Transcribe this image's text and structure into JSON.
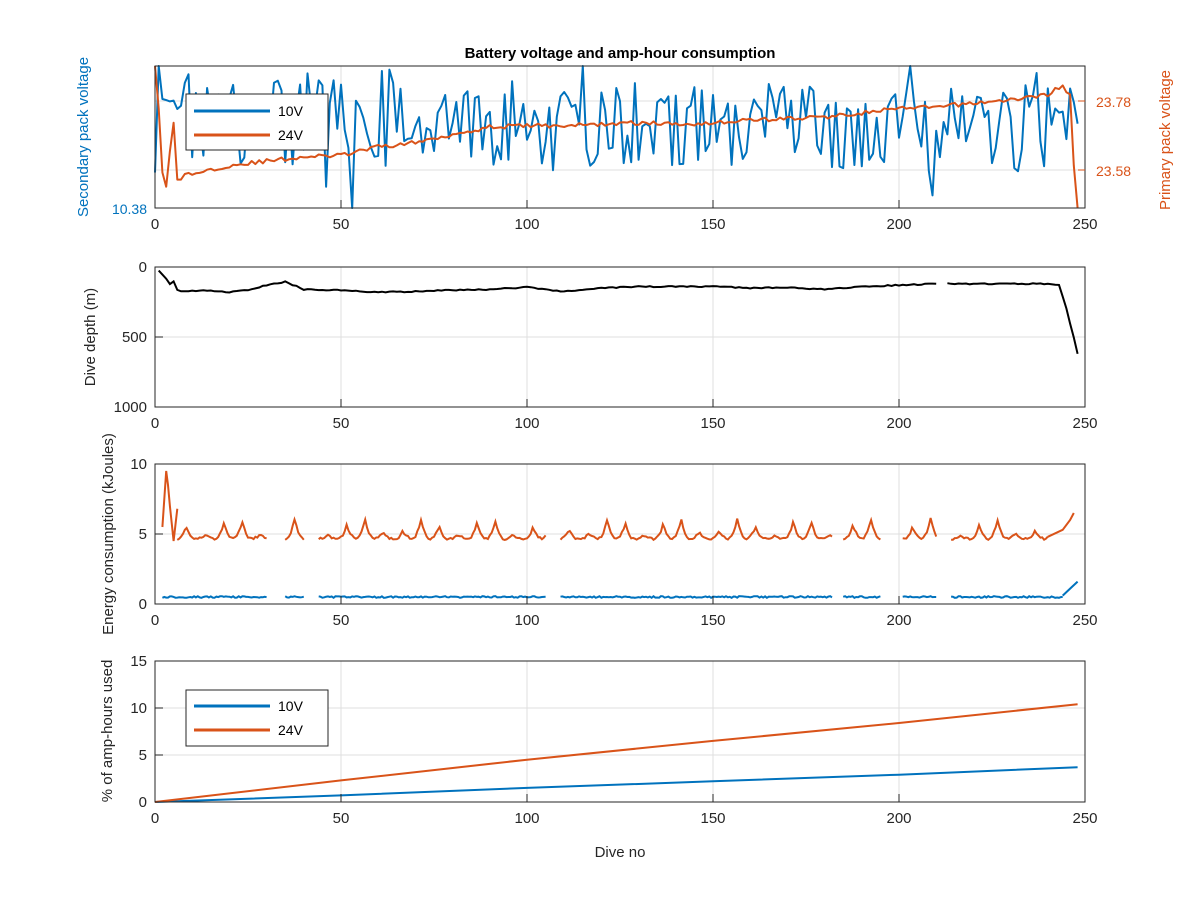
{
  "colors": {
    "series_10v": "#0072BD",
    "series_24v": "#D95319",
    "depth": "#000000",
    "axis": "#262626",
    "grid": "#DFDFDF"
  },
  "chart_data": [
    {
      "type": "line",
      "title": "Battery voltage and amp-hour consumption",
      "xlabel": "",
      "ylabel_left": "Secondary pack voltage",
      "ylabel_right": "Primary pack voltage",
      "xlim": [
        0,
        250
      ],
      "xticks": [
        "0",
        "50",
        "100",
        "150",
        "200",
        "250"
      ],
      "yticks_left": [
        "10.38"
      ],
      "yticks_right": [
        "23.58",
        "23.78"
      ],
      "grid": true,
      "legend": {
        "placement": "top-left",
        "entries": [
          "10V",
          "24V"
        ]
      },
      "series": [
        {
          "name": "10V",
          "axis": "left",
          "kind": "noisy",
          "x": [
            0,
            10,
            30,
            50,
            70,
            90,
            110,
            130,
            150,
            170,
            190,
            210,
            230,
            248
          ],
          "y": [
            0.55,
            0.6,
            0.6,
            0.6,
            0.58,
            0.6,
            0.6,
            0.58,
            0.58,
            0.58,
            0.55,
            0.55,
            0.55,
            0.62
          ],
          "amp": 0.3
        },
        {
          "name": "24V",
          "axis": "right",
          "kind": "line",
          "x": [
            0,
            1,
            2,
            3,
            4,
            5,
            6,
            8,
            10,
            20,
            30,
            40,
            50,
            60,
            70,
            80,
            90,
            100,
            110,
            120,
            130,
            140,
            150,
            160,
            170,
            180,
            190,
            200,
            210,
            220,
            230,
            240,
            242,
            244,
            246,
            247,
            248
          ],
          "y": [
            1.0,
            0.7,
            0.25,
            0.15,
            0.4,
            0.6,
            0.2,
            0.23,
            0.24,
            0.3,
            0.33,
            0.36,
            0.37,
            0.43,
            0.46,
            0.52,
            0.57,
            0.58,
            0.58,
            0.59,
            0.6,
            0.59,
            0.6,
            0.62,
            0.63,
            0.64,
            0.67,
            0.7,
            0.71,
            0.74,
            0.76,
            0.8,
            0.84,
            0.85,
            0.8,
            0.3,
            0.0
          ]
        }
      ]
    },
    {
      "type": "line",
      "title": "",
      "xlabel": "",
      "ylabel": "Dive depth (m)",
      "xlim": [
        0,
        250
      ],
      "ylim": [
        0,
        1000
      ],
      "y_reversed": true,
      "xticks": [
        "0",
        "50",
        "100",
        "150",
        "200",
        "250"
      ],
      "yticks": [
        "0",
        "500",
        "1000"
      ],
      "grid": true,
      "series": [
        {
          "name": "",
          "kind": "segments",
          "segments": [
            {
              "x": [
                1,
                3,
                4,
                5,
                6,
                7,
                15,
                20,
                25,
                30,
                35,
                40,
                50,
                60,
                70,
                80,
                90,
                100,
                110,
                120,
                130,
                140,
                150,
                160,
                170,
                180,
                190,
                200,
                210
              ],
              "y": [
                30,
                80,
                120,
                100,
                160,
                170,
                170,
                180,
                165,
                130,
                105,
                160,
                165,
                180,
                175,
                165,
                160,
                145,
                175,
                150,
                140,
                140,
                140,
                150,
                145,
                160,
                140,
                130,
                120
              ]
            },
            {
              "x": [
                213,
                220,
                230,
                240,
                243,
                245,
                247,
                248
              ],
              "y": [
                120,
                120,
                120,
                120,
                130,
                300,
                500,
                620
              ]
            }
          ]
        }
      ]
    },
    {
      "type": "line",
      "title": "",
      "xlabel": "",
      "ylabel": "Energy consumption (kJoules)",
      "xlim": [
        0,
        250
      ],
      "ylim": [
        0,
        10
      ],
      "xticks": [
        "0",
        "50",
        "100",
        "150",
        "200",
        "250"
      ],
      "yticks": [
        "0",
        "5",
        "10"
      ],
      "grid": true,
      "series": [
        {
          "name": "24V",
          "kind": "spiky",
          "segments": [
            [
              2,
              30
            ],
            [
              35,
              40
            ],
            [
              44,
              105
            ],
            [
              109,
              182
            ],
            [
              185,
              195
            ],
            [
              201,
              210
            ],
            [
              214,
              247
            ]
          ],
          "base": 5.0,
          "period": 5,
          "spike": 1.2,
          "extra": [
            {
              "x": [
                2,
                3,
                3.5,
                4,
                5,
                6
              ],
              "y": [
                5.5,
                9.5,
                8.5,
                7.0,
                4.5,
                6.8
              ]
            },
            {
              "x": [
                240,
                244,
                246,
                247
              ],
              "y": [
                4.8,
                5.3,
                6.0,
                6.5
              ]
            }
          ]
        },
        {
          "name": "10V",
          "kind": "flat",
          "segments": [
            [
              2,
              30
            ],
            [
              35,
              40
            ],
            [
              44,
              105
            ],
            [
              109,
              182
            ],
            [
              185,
              195
            ],
            [
              201,
              210
            ],
            [
              214,
              244
            ]
          ],
          "base": 0.5,
          "extra": [
            {
              "x": [
                244,
                246,
                248
              ],
              "y": [
                0.6,
                1.1,
                1.6
              ]
            }
          ]
        }
      ]
    },
    {
      "type": "line",
      "title": "",
      "xlabel": "Dive no",
      "ylabel": "% of amp-hours used",
      "xlim": [
        0,
        250
      ],
      "ylim": [
        0,
        15
      ],
      "xticks": [
        "0",
        "50",
        "100",
        "150",
        "200",
        "250"
      ],
      "yticks": [
        "0",
        "5",
        "10",
        "15"
      ],
      "grid": true,
      "legend": {
        "placement": "top-left",
        "entries": [
          "10V",
          "24V"
        ]
      },
      "series": [
        {
          "name": "10V",
          "kind": "line",
          "x": [
            0,
            50,
            100,
            150,
            200,
            248
          ],
          "y": [
            0,
            0.7,
            1.5,
            2.2,
            2.9,
            3.7
          ]
        },
        {
          "name": "24V",
          "kind": "line",
          "x": [
            0,
            50,
            100,
            150,
            200,
            248
          ],
          "y": [
            0,
            2.3,
            4.5,
            6.5,
            8.4,
            10.4
          ]
        }
      ]
    }
  ]
}
